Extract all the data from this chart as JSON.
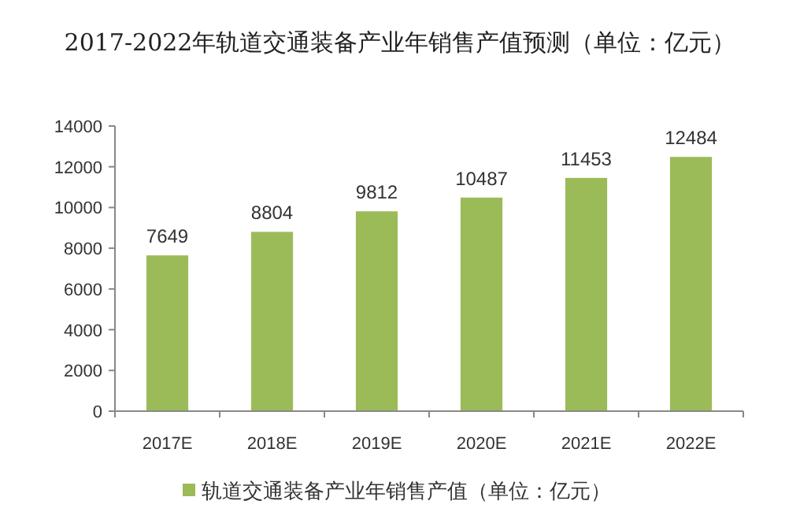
{
  "chart_data": {
    "type": "bar",
    "title": "2017-2022年轨道交通装备产业年销售产值预测（单位：亿元）",
    "categories": [
      "2017E",
      "2018E",
      "2019E",
      "2020E",
      "2021E",
      "2022E"
    ],
    "series": [
      {
        "name": "轨道交通装备产业年销售产值（单位：亿元）",
        "color": "#9bbb59",
        "values": [
          7649,
          8804,
          9812,
          10487,
          11453,
          12484
        ]
      }
    ],
    "ylim": [
      0,
      14000
    ],
    "yticks": [
      0,
      2000,
      4000,
      6000,
      8000,
      10000,
      12000,
      14000
    ],
    "data_labels": true,
    "legend": "bottom"
  }
}
